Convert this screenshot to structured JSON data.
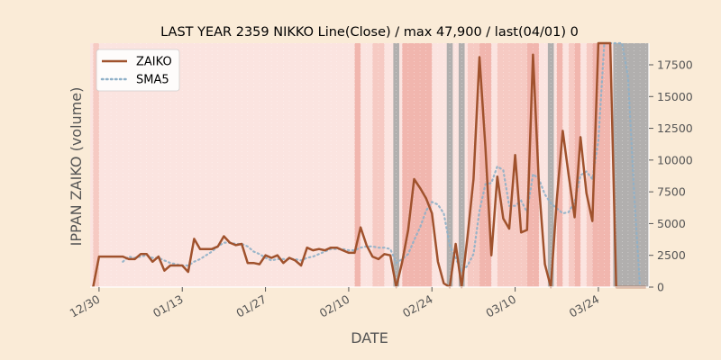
{
  "chart_data": {
    "type": "line",
    "title": "LAST YEAR 2359 NIKKO Line(Close) / max 47,900 / last(04/01) 0",
    "xlabel": "DATE",
    "ylabel": "IPPAN ZAIKO (volume)",
    "ylim": [
      0,
      19200
    ],
    "xlim_days": [
      -1.5,
      92.5
    ],
    "grid": false,
    "legend_position": "top-left",
    "x_ticks": [
      {
        "label": "12/30",
        "day": 0
      },
      {
        "label": "01/13",
        "day": 14
      },
      {
        "label": "01/27",
        "day": 28
      },
      {
        "label": "02/10",
        "day": 42
      },
      {
        "label": "02/24",
        "day": 56
      },
      {
        "label": "03/10",
        "day": 70
      },
      {
        "label": "03/24",
        "day": 84
      }
    ],
    "y_ticks": [
      0,
      2500,
      5000,
      7500,
      10000,
      12500,
      15000,
      17500
    ],
    "y_tick_labels": [
      "0",
      "2500",
      "5000",
      "7500",
      "10000",
      "12500",
      "15000",
      "17500"
    ],
    "colors": {
      "background": "#faebd7",
      "plot_background": "#fbe4e0",
      "zaiko": "#a0522d",
      "sma5": "#8fb0c8",
      "band_light": "#f4c5bd",
      "band_dark": "#efaea4",
      "band_gray": "#a9a9a9"
    },
    "series": [
      {
        "name": "ZAIKO",
        "style": "solid",
        "points": [
          [
            -1,
            0
          ],
          [
            0,
            2400
          ],
          [
            1,
            2400
          ],
          [
            2,
            2400
          ],
          [
            3,
            2400
          ],
          [
            4,
            2400
          ],
          [
            5,
            2200
          ],
          [
            6,
            2200
          ],
          [
            7,
            2600
          ],
          [
            8,
            2600
          ],
          [
            9,
            2000
          ],
          [
            10,
            2400
          ],
          [
            11,
            1300
          ],
          [
            12,
            1700
          ],
          [
            13,
            1700
          ],
          [
            14,
            1700
          ],
          [
            15,
            1200
          ],
          [
            16,
            3800
          ],
          [
            17,
            3000
          ],
          [
            18,
            3000
          ],
          [
            19,
            3000
          ],
          [
            20,
            3200
          ],
          [
            21,
            4000
          ],
          [
            22,
            3500
          ],
          [
            23,
            3300
          ],
          [
            24,
            3400
          ],
          [
            25,
            1900
          ],
          [
            26,
            1900
          ],
          [
            27,
            1800
          ],
          [
            28,
            2500
          ],
          [
            29,
            2300
          ],
          [
            30,
            2500
          ],
          [
            31,
            1900
          ],
          [
            32,
            2300
          ],
          [
            33,
            2100
          ],
          [
            34,
            1700
          ],
          [
            35,
            3100
          ],
          [
            36,
            2900
          ],
          [
            37,
            3000
          ],
          [
            38,
            2900
          ],
          [
            39,
            3100
          ],
          [
            40,
            3100
          ],
          [
            41,
            2900
          ],
          [
            42,
            2700
          ],
          [
            43,
            2700
          ],
          [
            44,
            4700
          ],
          [
            45,
            3300
          ],
          [
            46,
            2400
          ],
          [
            47,
            2200
          ],
          [
            48,
            2600
          ],
          [
            49,
            2500
          ],
          [
            50,
            0
          ],
          [
            51,
            2000
          ],
          [
            52,
            4500
          ],
          [
            53,
            8500
          ],
          [
            54,
            7800
          ],
          [
            55,
            7000
          ],
          [
            56,
            5800
          ],
          [
            57,
            2000
          ],
          [
            58,
            300
          ],
          [
            59,
            0
          ],
          [
            60,
            3400
          ],
          [
            61,
            0
          ],
          [
            62,
            4000
          ],
          [
            63,
            8500
          ],
          [
            64,
            18100
          ],
          [
            65,
            11000
          ],
          [
            66,
            2500
          ],
          [
            67,
            8700
          ],
          [
            68,
            5400
          ],
          [
            69,
            4600
          ],
          [
            70,
            10400
          ],
          [
            71,
            4300
          ],
          [
            72,
            4500
          ],
          [
            73,
            18300
          ],
          [
            74,
            8000
          ],
          [
            75,
            1800
          ],
          [
            76,
            0
          ],
          [
            77,
            6900
          ],
          [
            78,
            12300
          ],
          [
            79,
            8800
          ],
          [
            80,
            5500
          ],
          [
            81,
            11800
          ],
          [
            82,
            7400
          ],
          [
            83,
            5200
          ],
          [
            84,
            19200
          ],
          [
            85,
            19200
          ],
          [
            86,
            19200
          ],
          [
            87,
            0
          ],
          [
            88,
            0
          ],
          [
            89,
            0
          ],
          [
            90,
            0
          ],
          [
            91,
            0
          ],
          [
            92,
            0
          ]
        ]
      },
      {
        "name": "SMA5",
        "style": "dotted",
        "points": [
          [
            4,
            2000
          ],
          [
            5,
            2400
          ],
          [
            6,
            2300
          ],
          [
            7,
            2400
          ],
          [
            8,
            2500
          ],
          [
            9,
            2300
          ],
          [
            10,
            2300
          ],
          [
            11,
            2100
          ],
          [
            12,
            1900
          ],
          [
            13,
            1800
          ],
          [
            14,
            1700
          ],
          [
            15,
            1700
          ],
          [
            16,
            2000
          ],
          [
            17,
            2200
          ],
          [
            18,
            2500
          ],
          [
            19,
            2800
          ],
          [
            20,
            3200
          ],
          [
            21,
            3500
          ],
          [
            22,
            3500
          ],
          [
            23,
            3400
          ],
          [
            24,
            3400
          ],
          [
            25,
            3200
          ],
          [
            26,
            2800
          ],
          [
            27,
            2600
          ],
          [
            28,
            2300
          ],
          [
            29,
            2100
          ],
          [
            30,
            2200
          ],
          [
            31,
            2200
          ],
          [
            32,
            2200
          ],
          [
            33,
            2200
          ],
          [
            34,
            2100
          ],
          [
            35,
            2300
          ],
          [
            36,
            2400
          ],
          [
            37,
            2600
          ],
          [
            38,
            2800
          ],
          [
            39,
            3000
          ],
          [
            40,
            3000
          ],
          [
            41,
            3000
          ],
          [
            42,
            2900
          ],
          [
            43,
            2900
          ],
          [
            44,
            3100
          ],
          [
            45,
            3200
          ],
          [
            46,
            3200
          ],
          [
            47,
            3100
          ],
          [
            48,
            3100
          ],
          [
            49,
            3000
          ],
          [
            50,
            1900
          ],
          [
            51,
            2200
          ],
          [
            52,
            2600
          ],
          [
            53,
            3700
          ],
          [
            54,
            4700
          ],
          [
            55,
            6000
          ],
          [
            56,
            6700
          ],
          [
            57,
            6500
          ],
          [
            58,
            5800
          ],
          [
            59,
            3300
          ],
          [
            60,
            2300
          ],
          [
            61,
            1200
          ],
          [
            62,
            1700
          ],
          [
            63,
            2600
          ],
          [
            64,
            6000
          ],
          [
            65,
            8100
          ],
          [
            66,
            8200
          ],
          [
            67,
            9500
          ],
          [
            68,
            9200
          ],
          [
            69,
            6400
          ],
          [
            70,
            6400
          ],
          [
            71,
            6800
          ],
          [
            72,
            5900
          ],
          [
            73,
            8900
          ],
          [
            74,
            8500
          ],
          [
            75,
            7300
          ],
          [
            76,
            6600
          ],
          [
            77,
            6200
          ],
          [
            78,
            5800
          ],
          [
            79,
            5900
          ],
          [
            80,
            6700
          ],
          [
            81,
            8800
          ],
          [
            82,
            9100
          ],
          [
            83,
            8500
          ],
          [
            84,
            11500
          ],
          [
            85,
            19200
          ],
          [
            86,
            19200
          ],
          [
            87,
            19200
          ],
          [
            88,
            19200
          ],
          [
            89,
            16500
          ],
          [
            90,
            7500
          ],
          [
            91,
            0
          ]
        ]
      }
    ],
    "bands": [
      {
        "from": -1,
        "to": 0,
        "tone": "light"
      },
      {
        "from": 43,
        "to": 44,
        "tone": "dark"
      },
      {
        "from": 46,
        "to": 48,
        "tone": "light"
      },
      {
        "from": 49.5,
        "to": 50.5,
        "tone": "gray"
      },
      {
        "from": 51,
        "to": 56,
        "tone": "dark"
      },
      {
        "from": 58.5,
        "to": 59.5,
        "tone": "gray"
      },
      {
        "from": 60.5,
        "to": 61.5,
        "tone": "gray"
      },
      {
        "from": 62,
        "to": 64,
        "tone": "light"
      },
      {
        "from": 64,
        "to": 66,
        "tone": "dark"
      },
      {
        "from": 67,
        "to": 72,
        "tone": "light"
      },
      {
        "from": 72,
        "to": 74,
        "tone": "dark"
      },
      {
        "from": 75.5,
        "to": 76.5,
        "tone": "gray"
      },
      {
        "from": 77,
        "to": 78,
        "tone": "dark"
      },
      {
        "from": 79,
        "to": 80,
        "tone": "light"
      },
      {
        "from": 80,
        "to": 81,
        "tone": "dark"
      },
      {
        "from": 82,
        "to": 83,
        "tone": "light"
      },
      {
        "from": 83,
        "to": 86,
        "tone": "dark"
      },
      {
        "from": 86.5,
        "to": 92.5,
        "tone": "gray"
      }
    ]
  }
}
